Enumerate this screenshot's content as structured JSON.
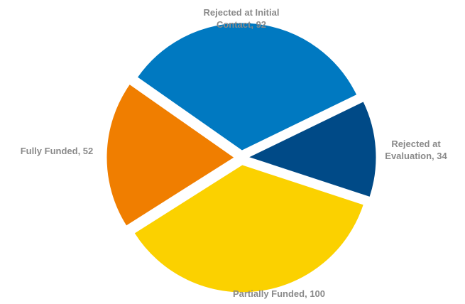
{
  "chart_data": {
    "type": "pie",
    "title": "",
    "categories": [
      "Rejected at Initial Contact",
      "Rejected at Evaluation",
      "Partially Funded",
      "Fully Funded"
    ],
    "values": [
      92,
      34,
      100,
      52
    ],
    "colors": [
      "#0079C1",
      "#004A87",
      "#FBD100",
      "#F07E00"
    ],
    "labels": [
      [
        "Rejected at Initial",
        "Contact, 92"
      ],
      [
        "Rejected at",
        "Evaluation, 34"
      ],
      [
        "Partially Funded, 100"
      ],
      [
        "Fully Funded, 52"
      ]
    ],
    "exploded": true,
    "legend": "none"
  }
}
